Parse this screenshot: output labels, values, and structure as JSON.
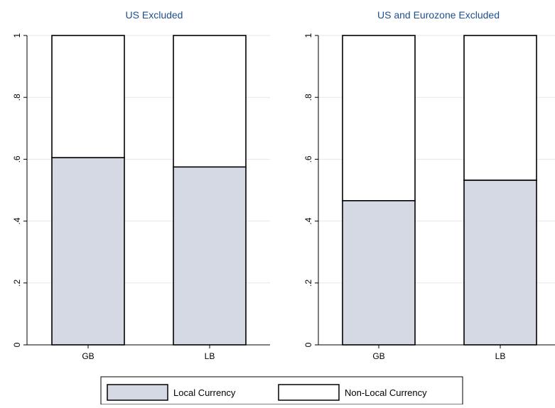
{
  "chart_data": [
    {
      "type": "bar",
      "stacked": true,
      "title": "US Excluded",
      "categories": [
        "GB",
        "LB"
      ],
      "series": [
        {
          "name": "Local Currency",
          "values": [
            0.605,
            0.575
          ]
        },
        {
          "name": "Non-Local Currency",
          "values": [
            0.395,
            0.425
          ]
        }
      ],
      "ylim": [
        0,
        1
      ],
      "yticks": [
        "0",
        ".2",
        ".4",
        ".6",
        ".8",
        "1"
      ],
      "grid": true
    },
    {
      "type": "bar",
      "stacked": true,
      "title": "US and Eurozone Excluded",
      "categories": [
        "GB",
        "LB"
      ],
      "series": [
        {
          "name": "Local Currency",
          "values": [
            0.466,
            0.532
          ]
        },
        {
          "name": "Non-Local Currency",
          "values": [
            0.534,
            0.468
          ]
        }
      ],
      "ylim": [
        0,
        1
      ],
      "yticks": [
        "0",
        ".2",
        ".4",
        ".6",
        ".8",
        "1"
      ],
      "grid": true
    }
  ],
  "legend": {
    "items": [
      {
        "label": "Local Currency",
        "color": "#d4d9e4"
      },
      {
        "label": "Non-Local Currency",
        "color": "#ffffff"
      }
    ],
    "position": "bottom"
  },
  "colors": {
    "title": "#1c4f8c",
    "local": "#d4d9e4",
    "nonlocal": "#ffffff",
    "outline": "#000000",
    "grid": "#e6e6e6",
    "axis": "#000000"
  }
}
